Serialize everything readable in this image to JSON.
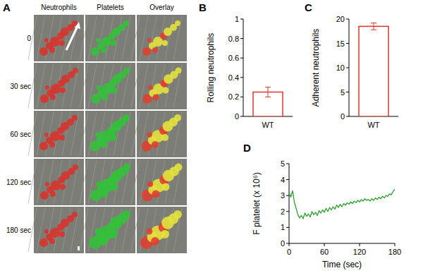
{
  "image_panel": {
    "label": "A",
    "columns": [
      "Neutrophils",
      "Platelets",
      "Overlay"
    ],
    "rows": [
      "0",
      "30 sec",
      "60 sec",
      "120 sec",
      "180 sec"
    ]
  },
  "chart_data": [
    {
      "type": "bar",
      "panel_label": "B",
      "y_label": "Rolling neutrophils",
      "categories": [
        "WT"
      ],
      "values": [
        0.25
      ],
      "errors": [
        0.05
      ],
      "color": "#e0342c",
      "ylim": [
        0,
        1
      ],
      "yticks": [
        0,
        0.2,
        0.4,
        0.6,
        0.8,
        1
      ]
    },
    {
      "type": "bar",
      "panel_label": "C",
      "y_label": "Adherent neutrophils",
      "categories": [
        "WT"
      ],
      "values": [
        18.5
      ],
      "errors": [
        0.7
      ],
      "color": "#e0342c",
      "ylim": [
        0,
        20
      ],
      "yticks": [
        0,
        5,
        10,
        15,
        20
      ]
    },
    {
      "type": "line",
      "panel_label": "D",
      "y_label": "F platelet (x 10⁶)",
      "x_label": "Time (sec)",
      "color": "#2ca02c",
      "x": [
        0,
        3,
        6,
        9,
        12,
        15,
        18,
        21,
        24,
        27,
        30,
        33,
        36,
        39,
        42,
        45,
        48,
        51,
        54,
        57,
        60,
        63,
        66,
        69,
        72,
        75,
        78,
        81,
        84,
        87,
        90,
        93,
        96,
        99,
        102,
        105,
        108,
        111,
        114,
        117,
        120,
        123,
        126,
        129,
        132,
        135,
        138,
        141,
        144,
        147,
        150,
        153,
        156,
        159,
        162,
        165,
        168,
        171,
        174,
        177,
        180
      ],
      "values": [
        3.2,
        2.9,
        3.3,
        2.6,
        2.2,
        1.8,
        1.6,
        1.75,
        1.55,
        1.9,
        1.7,
        1.85,
        1.65,
        2.0,
        1.8,
        1.95,
        1.75,
        2.05,
        1.9,
        2.1,
        1.95,
        2.2,
        2.0,
        2.25,
        2.1,
        2.3,
        2.15,
        2.4,
        2.25,
        2.45,
        2.3,
        2.5,
        2.4,
        2.55,
        2.45,
        2.6,
        2.5,
        2.65,
        2.55,
        2.7,
        2.6,
        2.75,
        2.65,
        2.8,
        2.7,
        2.75,
        2.65,
        2.8,
        2.7,
        2.85,
        2.75,
        2.9,
        2.8,
        2.95,
        2.85,
        3.0,
        2.95,
        3.1,
        3.05,
        3.25,
        3.4
      ],
      "xlim": [
        0,
        180
      ],
      "xticks": [
        0,
        60,
        120,
        180
      ],
      "ylim": [
        0,
        5
      ],
      "yticks": [
        0,
        1,
        2,
        3,
        4,
        5
      ]
    }
  ]
}
